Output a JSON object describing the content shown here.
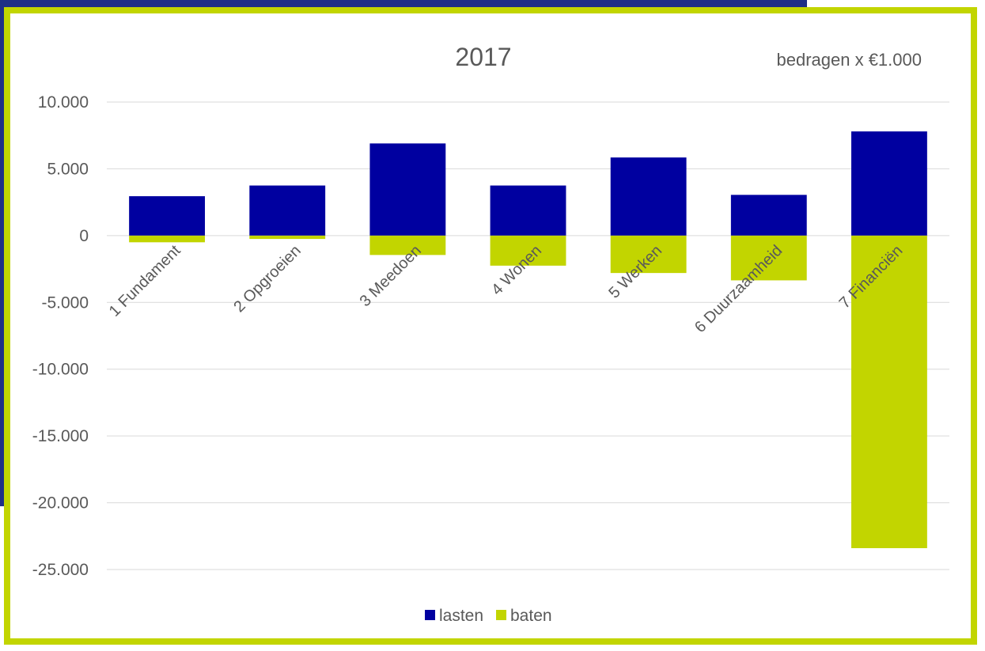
{
  "colors": {
    "background_accent": "#1f2f86",
    "frame_border": "#c2d500",
    "lasten": "#0000a0",
    "baten": "#c2d500",
    "grid": "#d9d9d9",
    "text": "#595959"
  },
  "chart_data": {
    "type": "bar",
    "title": "2017",
    "subtitle": "bedragen x €1.000",
    "categories": [
      "1 Fundament",
      "2 Opgroeien",
      "3 Meedoen",
      "4 Wonen",
      "5 Werken",
      "6 Duurzaamheid",
      "7 Financiën"
    ],
    "series": [
      {
        "name": "lasten",
        "values": [
          2950,
          3750,
          6900,
          3750,
          5850,
          3050,
          7800
        ]
      },
      {
        "name": "baten",
        "values": [
          -500,
          -250,
          -1450,
          -2250,
          -2800,
          -3350,
          -23400
        ]
      }
    ],
    "stacked": true,
    "ylim": [
      -25000,
      10000
    ],
    "yticks": [
      10000,
      5000,
      0,
      -5000,
      -10000,
      -15000,
      -20000,
      -25000
    ],
    "ytick_labels": [
      "10.000",
      "5.000",
      "0",
      "-5.000",
      "-10.000",
      "-15.000",
      "-20.000",
      "-25.000"
    ],
    "grid": true,
    "legend_position": "bottom"
  }
}
